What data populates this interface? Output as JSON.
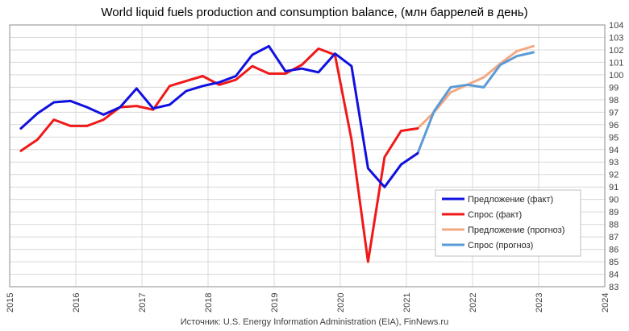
{
  "chart_data": {
    "type": "line",
    "title": "World liquid fuels production and  consumption balance, (млн  баррелей в день)",
    "source": "Источник: U.S. Energy Information Administration (EIA), FinNews.ru",
    "x_ticks": [
      "2015",
      "2016",
      "2017",
      "2018",
      "2019",
      "2020",
      "2021",
      "2022",
      "2023",
      "2024"
    ],
    "y_ticks": [
      "83",
      "84",
      "85",
      "86",
      "87",
      "88",
      "89",
      "90",
      "91",
      "92",
      "93",
      "94",
      "95",
      "96",
      "97",
      "98",
      "99",
      "100",
      "101",
      "102",
      "103",
      "104"
    ],
    "xlim": [
      2015,
      2024
    ],
    "ylim": [
      83,
      104
    ],
    "grid": true,
    "legend_position": "bottom-right",
    "series": [
      {
        "name": "Предложение (факт)",
        "color": "#1010e0",
        "x": [
          2015.17,
          2015.42,
          2015.67,
          2015.92,
          2016.17,
          2016.42,
          2016.67,
          2016.92,
          2017.17,
          2017.42,
          2017.67,
          2017.92,
          2018.17,
          2018.42,
          2018.67,
          2018.92,
          2019.17,
          2019.42,
          2019.67,
          2019.92,
          2020.17,
          2020.42,
          2020.67,
          2020.92,
          2021.17
        ],
        "y": [
          95.7,
          96.9,
          97.8,
          97.9,
          97.4,
          96.8,
          97.4,
          98.9,
          97.3,
          97.6,
          98.7,
          99.1,
          99.4,
          99.9,
          101.6,
          102.3,
          100.3,
          100.5,
          100.2,
          101.7,
          100.7,
          92.5,
          91.0,
          92.8,
          93.7
        ]
      },
      {
        "name": "Спрос (факт)",
        "color": "#f01818",
        "x": [
          2015.17,
          2015.42,
          2015.67,
          2015.92,
          2016.17,
          2016.42,
          2016.67,
          2016.92,
          2017.17,
          2017.42,
          2017.67,
          2017.92,
          2018.17,
          2018.42,
          2018.67,
          2018.92,
          2019.17,
          2019.42,
          2019.67,
          2019.92,
          2020.17,
          2020.42,
          2020.67,
          2020.92,
          2021.17
        ],
        "y": [
          93.9,
          94.8,
          96.4,
          95.9,
          95.9,
          96.4,
          97.4,
          97.5,
          97.2,
          99.1,
          99.5,
          99.9,
          99.2,
          99.6,
          100.7,
          100.1,
          100.1,
          100.8,
          102.1,
          101.6,
          94.8,
          85.0,
          93.4,
          95.5,
          95.7
        ]
      },
      {
        "name": "Предложение (прогноз)",
        "color": "#f4a882",
        "x": [
          2021.17,
          2021.42,
          2021.67,
          2021.92,
          2022.17,
          2022.42,
          2022.67,
          2022.92
        ],
        "y": [
          95.7,
          97.0,
          98.6,
          99.2,
          99.8,
          100.9,
          101.9,
          102.3
        ]
      },
      {
        "name": "Спрос (прогноз)",
        "color": "#5b9bd5",
        "x": [
          2021.17,
          2021.42,
          2021.67,
          2021.92,
          2022.17,
          2022.42,
          2022.67,
          2022.92
        ],
        "y": [
          93.7,
          97.1,
          99.0,
          99.2,
          99.0,
          100.8,
          101.5,
          101.8
        ]
      }
    ]
  }
}
